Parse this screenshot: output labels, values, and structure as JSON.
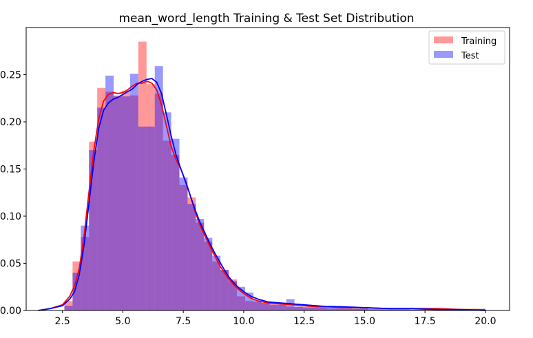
{
  "chart_data": {
    "type": "histogram",
    "title": "mean_word_length Training & Test Set Distribution",
    "xlabel": "",
    "ylabel": "",
    "xlim": [
      1.0,
      21.0
    ],
    "ylim": [
      0.0,
      0.3
    ],
    "bin_width": 0.34,
    "x_ticks": [
      "2.5",
      "5.0",
      "7.5",
      "10.0",
      "12.5",
      "15.0",
      "17.5",
      "20.0"
    ],
    "y_ticks": [
      "0.00",
      "0.05",
      "0.10",
      "0.15",
      "0.20",
      "0.25"
    ],
    "legend_position": "top-right",
    "series": [
      {
        "name": "Training",
        "color": "#ff0000",
        "hist_x": [
          2.75,
          3.09,
          3.43,
          3.77,
          4.11,
          4.45,
          4.79,
          5.13,
          5.47,
          5.81,
          6.15,
          6.49,
          6.83,
          7.17,
          7.51,
          7.85,
          8.19,
          8.53,
          8.87,
          9.21,
          9.55,
          9.89,
          10.23,
          10.57,
          10.91,
          11.25,
          11.59,
          11.93,
          12.27,
          12.61,
          12.95,
          13.29,
          13.63,
          13.97,
          14.31,
          14.65,
          14.99,
          15.33,
          15.67,
          16.01,
          16.35,
          16.69,
          17.03,
          17.37,
          17.71,
          18.05,
          18.39,
          18.73,
          19.07,
          19.41,
          19.75
        ],
        "hist_y": [
          0.01,
          0.052,
          0.078,
          0.179,
          0.236,
          0.232,
          0.228,
          0.233,
          0.228,
          0.285,
          0.24,
          0.23,
          0.18,
          0.165,
          0.133,
          0.12,
          0.093,
          0.073,
          0.052,
          0.043,
          0.033,
          0.015,
          0.01,
          0.009,
          0.008,
          0.007,
          0.006,
          0.004,
          0.004,
          0.003,
          0.003,
          0.003,
          0.002,
          0.002,
          0.002,
          0.002,
          0.002,
          0.001,
          0.001,
          0.001,
          0.001,
          0.001,
          0.001,
          0.001,
          0.001,
          0.001,
          0.001,
          0.001,
          0.001,
          0.001,
          0.001
        ],
        "kde_x": [
          1.5,
          2.0,
          2.5,
          2.8,
          3.0,
          3.2,
          3.4,
          3.6,
          3.8,
          4.0,
          4.2,
          4.4,
          4.6,
          4.8,
          5.0,
          5.2,
          5.4,
          5.6,
          5.8,
          6.0,
          6.2,
          6.4,
          6.6,
          6.8,
          7.0,
          7.2,
          7.4,
          7.6,
          7.8,
          8.0,
          8.2,
          8.4,
          8.6,
          8.8,
          9.0,
          9.2,
          9.4,
          9.6,
          9.8,
          10.0,
          10.3,
          10.6,
          11.0,
          11.5,
          12.0,
          12.5,
          13.0,
          13.5,
          14.0,
          15.0,
          16.0,
          17.0,
          18.0,
          19.0,
          20.0
        ],
        "kde_y": [
          0.0,
          0.002,
          0.006,
          0.015,
          0.026,
          0.045,
          0.08,
          0.126,
          0.17,
          0.203,
          0.222,
          0.229,
          0.231,
          0.23,
          0.231,
          0.234,
          0.238,
          0.241,
          0.241,
          0.243,
          0.241,
          0.234,
          0.218,
          0.196,
          0.174,
          0.16,
          0.15,
          0.137,
          0.121,
          0.104,
          0.09,
          0.079,
          0.068,
          0.058,
          0.048,
          0.04,
          0.033,
          0.027,
          0.022,
          0.018,
          0.013,
          0.01,
          0.008,
          0.007,
          0.006,
          0.005,
          0.004,
          0.004,
          0.003,
          0.003,
          0.002,
          0.002,
          0.002,
          0.001,
          0.001
        ]
      },
      {
        "name": "Test",
        "color": "#0000ff",
        "hist_x": [
          2.75,
          3.09,
          3.43,
          3.77,
          4.11,
          4.45,
          4.79,
          5.13,
          5.47,
          5.81,
          6.15,
          6.49,
          6.83,
          7.17,
          7.51,
          7.85,
          8.19,
          8.53,
          8.87,
          9.21,
          9.55,
          9.89,
          10.23,
          10.57,
          10.91,
          11.25,
          11.59,
          11.93,
          12.27,
          12.61,
          12.95,
          13.29,
          13.63,
          13.97,
          14.31,
          14.65,
          14.99,
          15.33,
          15.67,
          16.01,
          16.35,
          16.69,
          17.03,
          17.37
        ],
        "hist_y": [
          0.005,
          0.04,
          0.09,
          0.17,
          0.215,
          0.249,
          0.227,
          0.227,
          0.251,
          0.195,
          0.195,
          0.259,
          0.21,
          0.182,
          0.141,
          0.113,
          0.097,
          0.077,
          0.058,
          0.043,
          0.031,
          0.025,
          0.019,
          0.011,
          0.008,
          0.006,
          0.008,
          0.012,
          0.004,
          0.004,
          0.005,
          0.004,
          0.005,
          0.003,
          0.003,
          0.002,
          0.003,
          0.002,
          0.002,
          0.002,
          0.002,
          0.002,
          0.001,
          0.001
        ],
        "kde_x": [
          1.5,
          2.0,
          2.5,
          2.8,
          3.0,
          3.2,
          3.4,
          3.6,
          3.8,
          4.0,
          4.2,
          4.4,
          4.6,
          4.8,
          5.0,
          5.2,
          5.4,
          5.6,
          5.8,
          6.0,
          6.2,
          6.4,
          6.6,
          6.8,
          7.0,
          7.2,
          7.4,
          7.6,
          7.8,
          8.0,
          8.2,
          8.4,
          8.6,
          8.8,
          9.0,
          9.2,
          9.4,
          9.6,
          9.8,
          10.0,
          10.3,
          10.6,
          11.0,
          11.5,
          12.0,
          12.5,
          13.0,
          13.5,
          14.0,
          15.0,
          16.0,
          17.0,
          18.0,
          19.0,
          20.0
        ],
        "kde_y": [
          0.0,
          0.002,
          0.005,
          0.012,
          0.02,
          0.038,
          0.07,
          0.114,
          0.158,
          0.193,
          0.212,
          0.22,
          0.224,
          0.226,
          0.229,
          0.232,
          0.235,
          0.24,
          0.243,
          0.245,
          0.246,
          0.242,
          0.23,
          0.208,
          0.185,
          0.165,
          0.15,
          0.136,
          0.121,
          0.106,
          0.093,
          0.082,
          0.071,
          0.061,
          0.052,
          0.043,
          0.035,
          0.029,
          0.024,
          0.02,
          0.015,
          0.012,
          0.009,
          0.008,
          0.007,
          0.006,
          0.005,
          0.004,
          0.004,
          0.003,
          0.002,
          0.002,
          0.001,
          0.001,
          0.0
        ]
      }
    ]
  }
}
